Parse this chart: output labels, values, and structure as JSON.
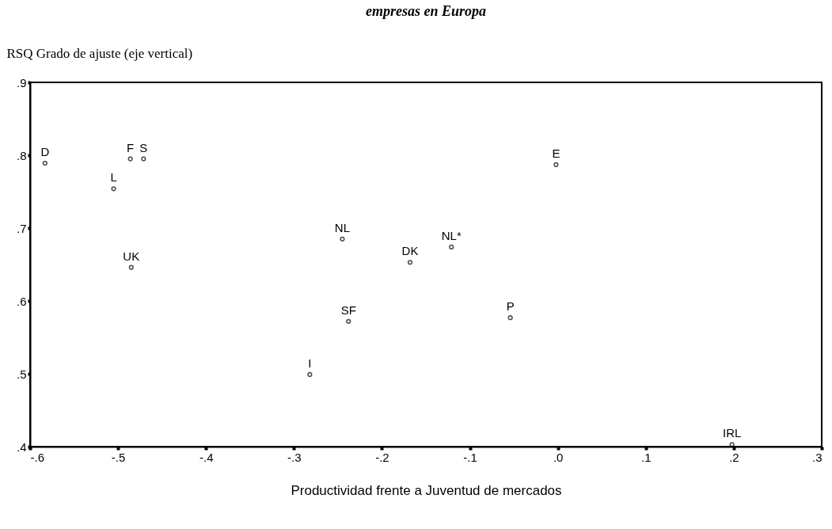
{
  "chart_data": {
    "type": "scatter",
    "title": "empresas en Europa",
    "xlabel": "Productividad frente a Juventud de mercados",
    "ylabel": "RSQ Grado de ajuste (eje vertical)",
    "x": [
      -0.583,
      -0.486,
      -0.471,
      -0.505,
      -0.485,
      -0.245,
      -0.168,
      -0.121,
      -0.238,
      -0.054,
      -0.282,
      -0.002,
      0.198
    ],
    "series": [
      {
        "color": "#000000",
        "values": [
          0.789,
          0.795,
          0.795,
          0.754,
          0.646,
          0.685,
          0.653,
          0.674,
          0.572,
          0.577,
          0.499,
          0.787,
          0.403
        ]
      }
    ],
    "annotations": [
      {
        "text": "D",
        "x": -0.583,
        "y": 0.789
      },
      {
        "text": "F",
        "x": -0.486,
        "y": 0.795
      },
      {
        "text": "S",
        "x": -0.471,
        "y": 0.795
      },
      {
        "text": "L",
        "x": -0.505,
        "y": 0.754
      },
      {
        "text": "UK",
        "x": -0.485,
        "y": 0.646
      },
      {
        "text": "NL",
        "x": -0.245,
        "y": 0.685
      },
      {
        "text": "DK",
        "x": -0.168,
        "y": 0.653
      },
      {
        "text": "NL*",
        "x": -0.121,
        "y": 0.674
      },
      {
        "text": "SF",
        "x": -0.238,
        "y": 0.572
      },
      {
        "text": "P",
        "x": -0.054,
        "y": 0.577
      },
      {
        "text": "I",
        "x": -0.282,
        "y": 0.499
      },
      {
        "text": "E",
        "x": -0.002,
        "y": 0.787
      },
      {
        "text": "IRL",
        "x": 0.198,
        "y": 0.403
      }
    ],
    "xlim": [
      -0.6,
      0.3
    ],
    "xticks": [
      {
        "value": -0.6,
        "label": "-.6"
      },
      {
        "value": -0.5,
        "label": "-.5"
      },
      {
        "value": -0.4,
        "label": "-.4"
      },
      {
        "value": -0.3,
        "label": "-.3"
      },
      {
        "value": -0.2,
        "label": "-.2"
      },
      {
        "value": -0.1,
        "label": "-.1"
      },
      {
        "value": 0,
        "label": ".0"
      },
      {
        "value": 0.1,
        "label": ".1"
      },
      {
        "value": 0.2,
        "label": ".2"
      },
      {
        "value": 0.3,
        "label": ".3"
      }
    ],
    "ylim": [
      0.4,
      0.9
    ],
    "yticks": [
      {
        "value": 0.4,
        "label": ".4"
      },
      {
        "value": 0.5,
        "label": ".5"
      },
      {
        "value": 0.6,
        "label": ".6"
      },
      {
        "value": 0.7,
        "label": ".7"
      },
      {
        "value": 0.8,
        "label": ".8"
      },
      {
        "value": 0.9,
        "label": ".9"
      }
    ],
    "marker": "circle",
    "grid": false
  }
}
